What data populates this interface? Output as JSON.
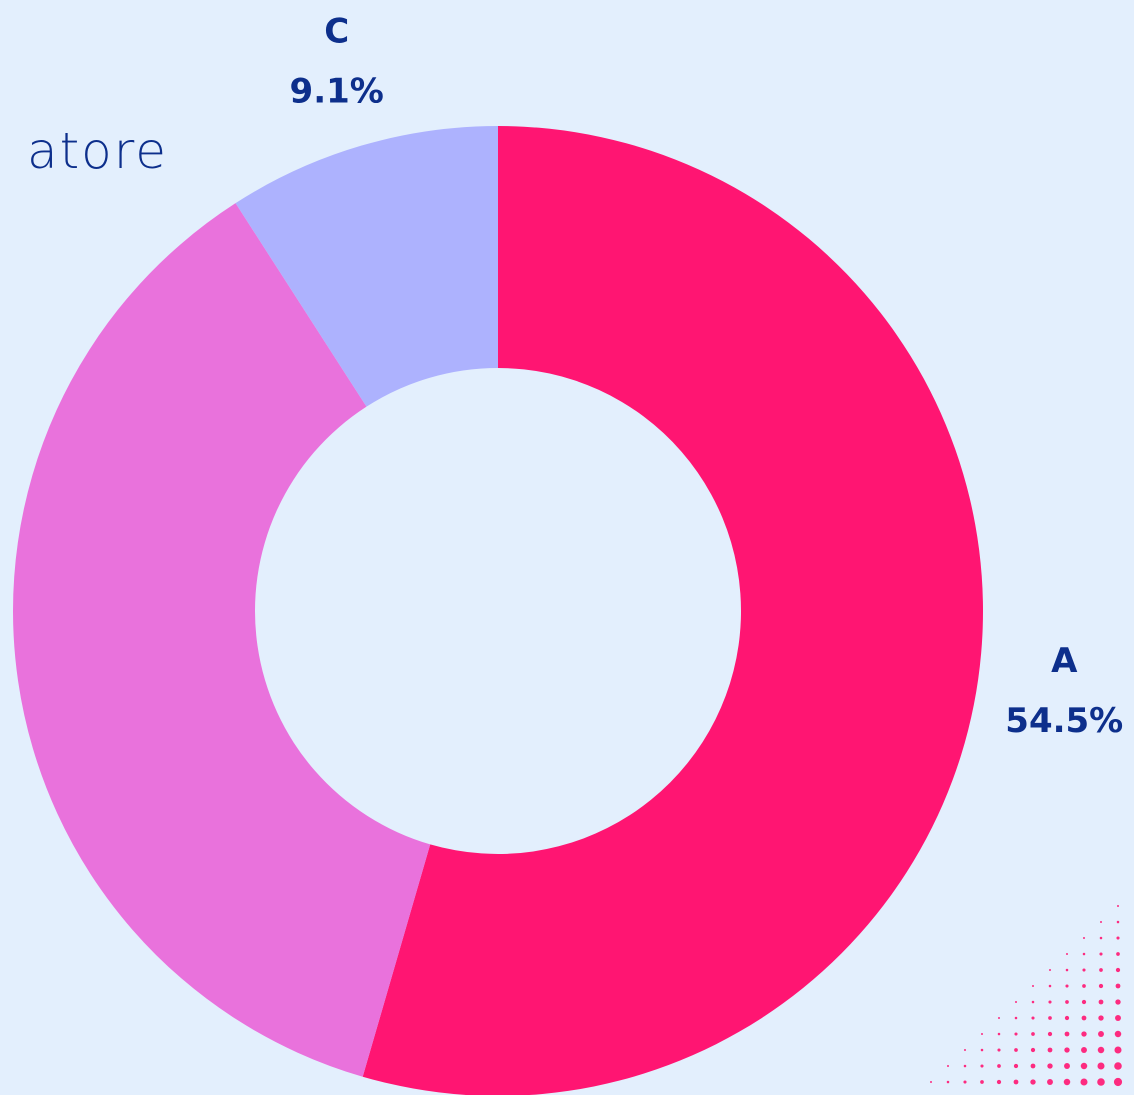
{
  "chart_data": {
    "type": "donut",
    "title": "atore",
    "categories": [
      "A",
      null,
      "C"
    ],
    "values": [
      54.5,
      36.4,
      9.1
    ],
    "value_labels": [
      "54.5%",
      null,
      "9.1%"
    ],
    "colors": [
      "#ff1572",
      "#e972dc",
      "#adb2fe"
    ]
  }
}
